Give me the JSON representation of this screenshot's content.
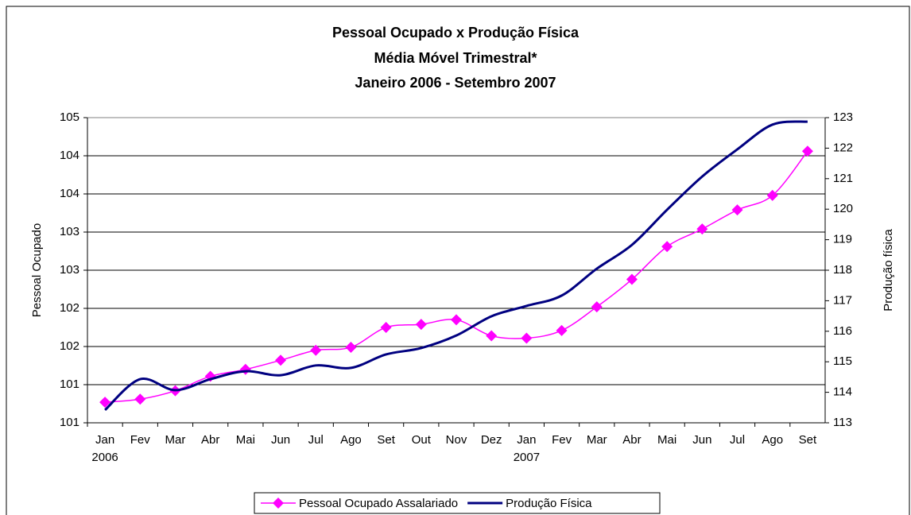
{
  "chart_data": {
    "type": "line",
    "title": [
      "Pessoal Ocupado x Produção Física",
      "Média Móvel Trimestral*",
      "Janeiro 2006 - Setembro 2007"
    ],
    "ylabel": "Pessoal Ocupado",
    "y2label": "Produção física",
    "categories": [
      "Jan",
      "Fev",
      "Mar",
      "Abr",
      "Mai",
      "Jun",
      "Jul",
      "Ago",
      "Set",
      "Out",
      "Nov",
      "Dez",
      "Jan",
      "Fev",
      "Mar",
      "Abr",
      "Mai",
      "Jun",
      "Jul",
      "Ago",
      "Set"
    ],
    "categories_line2": [
      "2006",
      null,
      null,
      null,
      null,
      null,
      null,
      null,
      null,
      null,
      null,
      null,
      "2007",
      null,
      null,
      null,
      null,
      null,
      null,
      null,
      null
    ],
    "ylim": [
      100.5,
      104.5
    ],
    "yticks": [
      {
        "value": 100.5,
        "label": "101"
      },
      {
        "value": 101,
        "label": "101"
      },
      {
        "value": 101.5,
        "label": "102"
      },
      {
        "value": 102,
        "label": "102"
      },
      {
        "value": 102.5,
        "label": "103"
      },
      {
        "value": 103,
        "label": "103"
      },
      {
        "value": 103.5,
        "label": "104"
      },
      {
        "value": 104,
        "label": "104"
      },
      {
        "value": 104.5,
        "label": "105"
      }
    ],
    "y2lim": [
      113,
      123
    ],
    "y2ticks": [
      113,
      114,
      115,
      116,
      117,
      118,
      119,
      120,
      121,
      122,
      123
    ],
    "grid": true,
    "series": [
      {
        "name": "Pessoal Ocupado Assalariado",
        "color": "#ff00ff",
        "marker": "diamond",
        "values": [
          100.77,
          100.81,
          100.92,
          101.11,
          101.2,
          101.32,
          101.45,
          101.49,
          101.75,
          101.79,
          101.85,
          101.64,
          101.61,
          101.71,
          102.02,
          102.38,
          102.81,
          103.04,
          103.29,
          103.48,
          104.06
        ]
      },
      {
        "name": "Produção Física",
        "color": "#000080",
        "axis": "y2",
        "values": [
          113.42,
          114.43,
          114.07,
          114.43,
          114.69,
          114.56,
          114.88,
          114.8,
          115.24,
          115.45,
          115.86,
          116.49,
          116.83,
          117.17,
          118.05,
          118.83,
          119.98,
          121.07,
          121.96,
          122.77,
          122.87
        ]
      }
    ],
    "legend": "bottom"
  }
}
